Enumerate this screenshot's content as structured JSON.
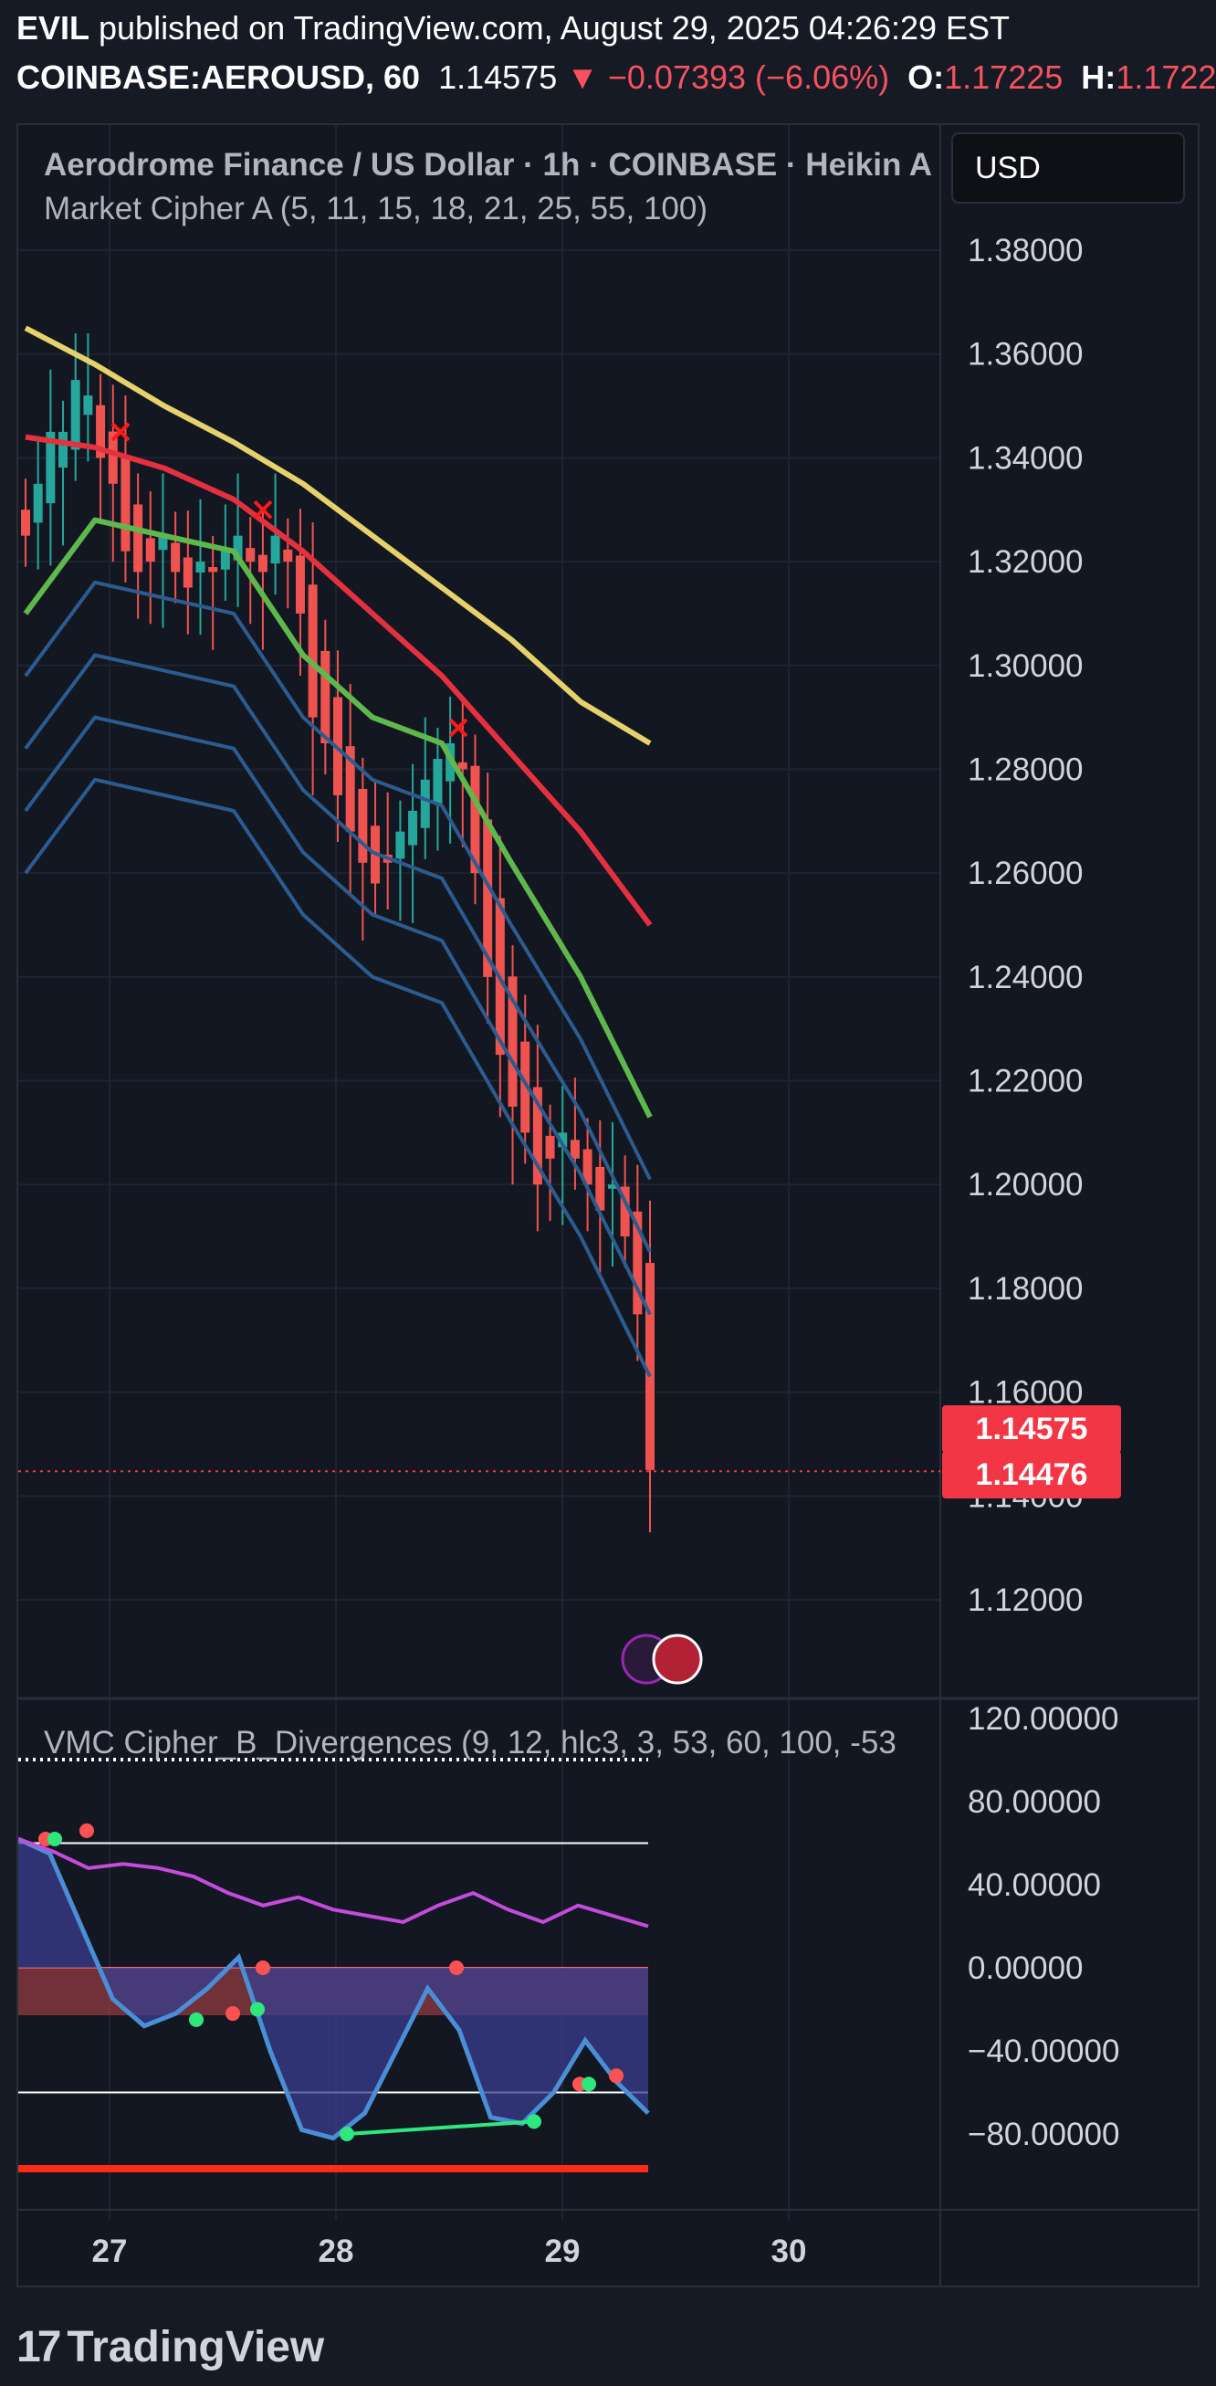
{
  "header": {
    "line1_user": "EVIL",
    "line1_rest": " published on TradingView.com, August 29, 2025 04:26:29 EST",
    "symbol": "COINBASE:AEROUSD, 60",
    "price": "1.14575",
    "change": "▼ −0.07393 (−6.06%)",
    "o_label": "O:",
    "o_value": "1.17225",
    "h_label": "H:",
    "h_value": "1.1722"
  },
  "chart": {
    "legend_title": "Aerodrome Finance / US Dollar · 1h · COINBASE · Heikin A",
    "indicator_a": "Market Cipher A (5, 11, 15, 18, 21, 25, 55, 100)",
    "indicator_b": "VMC Cipher_B_Divergences (9, 12, hlc3, 3, 53, 60, 100, -53",
    "currency_button": "USD",
    "last_price": "1.14575",
    "close_price": "1.14476"
  },
  "colors": {
    "up": "#26a69a",
    "down": "#ef5350",
    "ema_yellow": "#e6d26a",
    "ema_red": "#e5303f",
    "ema_green": "#5fb84c",
    "ribbon": "#2c5c8f",
    "accent_red": "#f23645"
  },
  "chart_data": [
    {
      "type": "candlestick",
      "title": "Aerodrome Finance / US Dollar · 1h · COINBASE · Heikin A",
      "x_ticks": [
        "27",
        "28",
        "29",
        "30"
      ],
      "y_ticks": [
        "1.38000",
        "1.36000",
        "1.34000",
        "1.32000",
        "1.30000",
        "1.28000",
        "1.26000",
        "1.24000",
        "1.22000",
        "1.20000",
        "1.18000",
        "1.16000",
        "1.14000",
        "1.12000"
      ],
      "ylim": [
        1.11,
        1.385
      ],
      "close_series": [
        1.325,
        1.335,
        1.345,
        1.345,
        1.355,
        1.352,
        1.34,
        1.335,
        1.322,
        1.318,
        1.32,
        1.325,
        1.318,
        1.315,
        1.32,
        1.318,
        1.322,
        1.325,
        1.32,
        1.318,
        1.325,
        1.32,
        1.31,
        1.29,
        1.285,
        1.275,
        1.268,
        1.262,
        1.258,
        1.262,
        1.268,
        1.272,
        1.278,
        1.282,
        1.285,
        1.28,
        1.26,
        1.24,
        1.225,
        1.215,
        1.21,
        1.2,
        1.205,
        1.21,
        1.205,
        1.2,
        1.195,
        1.2,
        1.19,
        1.175,
        1.145
      ],
      "ema_100": [
        1.365,
        1.358,
        1.35,
        1.343,
        1.335,
        1.325,
        1.315,
        1.305,
        1.293,
        1.285
      ],
      "ema_55": [
        1.344,
        1.342,
        1.338,
        1.332,
        1.322,
        1.31,
        1.298,
        1.283,
        1.268,
        1.25
      ],
      "ema_green": [
        1.31,
        1.328,
        1.325,
        1.322,
        1.302,
        1.29,
        1.285,
        1.262,
        1.24,
        1.213
      ],
      "markers_x": [
        {
          "label": "cross",
          "price": 1.345
        },
        {
          "label": "cross",
          "price": 1.33
        },
        {
          "label": "cross",
          "price": 1.288
        }
      ],
      "last_price": 1.14575,
      "close_price": 1.14476
    },
    {
      "type": "oscillator",
      "title": "VMC Cipher_B_Divergences (9, 12, hlc3, 3, 53, 60, 100, -53",
      "y_ticks": [
        "120.00000",
        "80.00000",
        "40.00000",
        "0.00000",
        "−40.00000",
        "−80.00000"
      ],
      "ylim": [
        -105,
        120
      ],
      "overbought": 60,
      "oversold": -60,
      "wave": [
        62,
        55,
        20,
        -15,
        -28,
        -22,
        -10,
        5,
        -40,
        -78,
        -82,
        -70,
        -40,
        -10,
        -30,
        -72,
        -75,
        -60,
        -35,
        -55,
        -70
      ],
      "rsi_line": [
        62,
        56,
        48,
        50,
        48,
        44,
        36,
        30,
        34,
        28,
        25,
        22,
        30,
        36,
        28,
        22,
        30,
        25,
        20
      ]
    }
  ]
}
